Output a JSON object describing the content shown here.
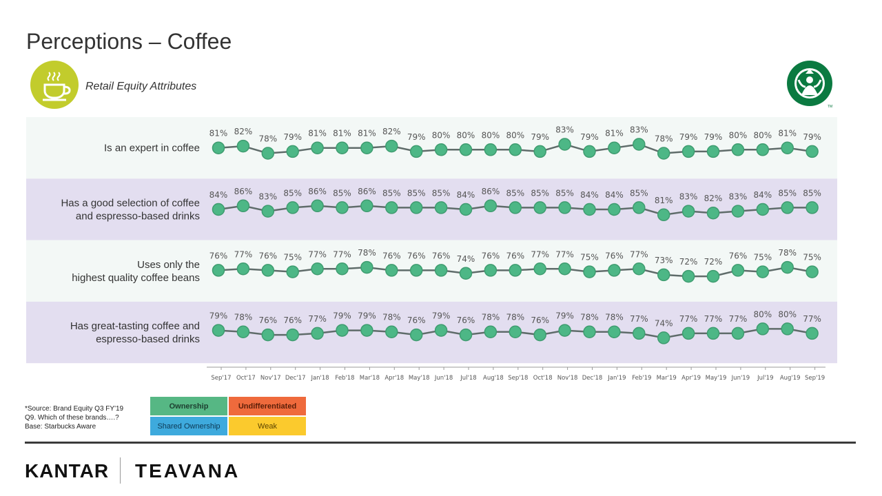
{
  "page": {
    "title": "Perceptions – Coffee",
    "subtitle": "Retail Equity Attributes",
    "brand_logo": "starbucks-siren-logo",
    "cup_icon": "coffee-cup-icon"
  },
  "chart_data": {
    "type": "line",
    "categories": [
      "Sep'17",
      "Oct'17",
      "Nov'17",
      "Dec'17",
      "Jan'18",
      "Feb'18",
      "Mar'18",
      "Apr'18",
      "May'18",
      "Jun'18",
      "Jul'18",
      "Aug'18",
      "Sep'18",
      "Oct'18",
      "Nov'18",
      "Dec'18",
      "Jan'19",
      "Feb'19",
      "Mar'19",
      "Apr'19",
      "May'19",
      "Jun'19",
      "Jul'19",
      "Aug'19",
      "Sep'19"
    ],
    "unit": "%",
    "series": [
      {
        "name": "Is an expert in coffee",
        "label_lines": [
          "Is an expert in coffee"
        ],
        "values": [
          81,
          82,
          78,
          79,
          81,
          81,
          81,
          82,
          79,
          80,
          80,
          80,
          80,
          79,
          83,
          79,
          81,
          83,
          78,
          79,
          79,
          80,
          80,
          81,
          79
        ]
      },
      {
        "name": "Has a good selection of coffee and espresso-based drinks",
        "label_lines": [
          "Has a good selection of coffee",
          "and espresso-based drinks"
        ],
        "values": [
          84,
          86,
          83,
          85,
          86,
          85,
          86,
          85,
          85,
          85,
          84,
          86,
          85,
          85,
          85,
          84,
          84,
          85,
          81,
          83,
          82,
          83,
          84,
          85,
          85
        ]
      },
      {
        "name": "Uses only the highest quality coffee beans",
        "label_lines": [
          "Uses only the",
          "highest quality coffee beans"
        ],
        "values": [
          76,
          77,
          76,
          75,
          77,
          77,
          78,
          76,
          76,
          76,
          74,
          76,
          76,
          77,
          77,
          75,
          76,
          77,
          73,
          72,
          72,
          76,
          75,
          78,
          75
        ]
      },
      {
        "name": "Has great-tasting coffee and espresso-based drinks",
        "label_lines": [
          "Has great-tasting coffee and",
          "espresso-based drinks"
        ],
        "values": [
          79,
          78,
          76,
          76,
          77,
          79,
          79,
          78,
          76,
          79,
          76,
          78,
          78,
          76,
          79,
          78,
          78,
          77,
          74,
          77,
          77,
          77,
          80,
          80,
          77
        ]
      }
    ],
    "colors": {
      "marker": "#4db786",
      "marker_stroke": "#3f9c70",
      "line": "#5f6c6a",
      "band_light": "#f3f8f6",
      "band_dark": "#e3def0"
    }
  },
  "footer": {
    "source_lines": [
      "*Source: Brand Equity Q3 FY'19",
      "Q9. Which of these brands….?",
      "Base: Starbucks Aware"
    ],
    "legend": {
      "ownership": {
        "label": "Ownership",
        "color": "#56b784"
      },
      "undifferentiated": {
        "label": "Undifferentiated",
        "color": "#ef6a3c"
      },
      "shared": {
        "label": "Shared Ownership",
        "color": "#3eaadd"
      },
      "weak": {
        "label": "Weak",
        "color": "#fbca2d"
      }
    },
    "kantar": "KANTAR",
    "teavana": "TEAVANA"
  }
}
